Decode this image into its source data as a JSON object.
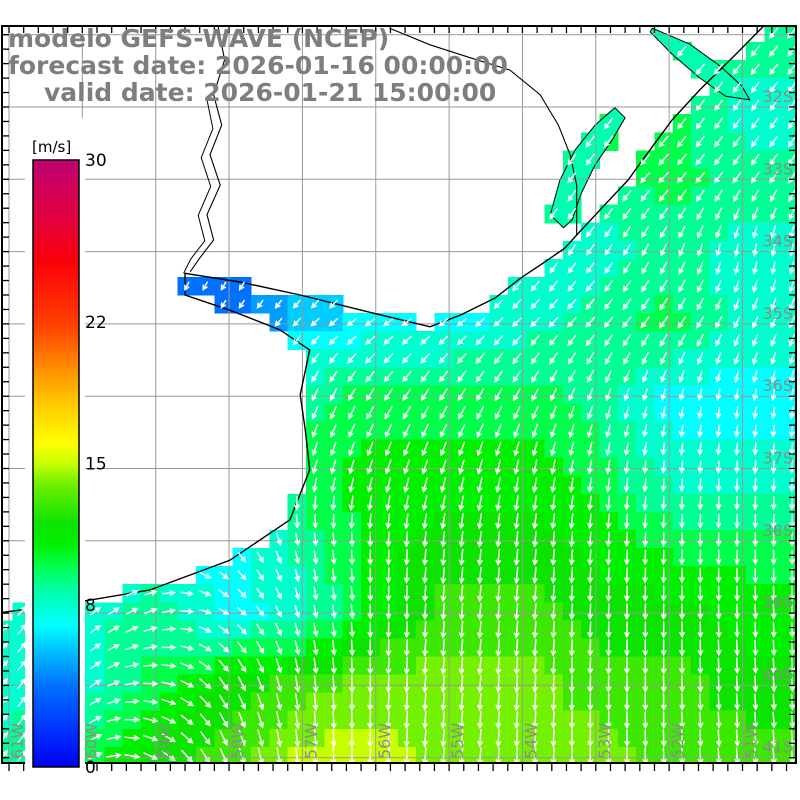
{
  "header": {
    "line1": "modelo GEFS-WAVE (NCEP)",
    "line2": "forecast date: 2026-01-16 00:00:00",
    "line3": "valid date: 2026-01-21 15:00:00"
  },
  "colorbar": {
    "unit_label": "[m/s]",
    "min": 0,
    "max": 30,
    "tick_values": [
      30,
      22,
      15,
      8,
      0
    ],
    "tick_labels": [
      "30",
      "22",
      "15",
      "8",
      "0"
    ],
    "stops": [
      {
        "v": 0,
        "c": "#0000f0"
      },
      {
        "v": 2,
        "c": "#0038ff"
      },
      {
        "v": 4,
        "c": "#0070ff"
      },
      {
        "v": 5.5,
        "c": "#00b4ff"
      },
      {
        "v": 7,
        "c": "#00ffff"
      },
      {
        "v": 8,
        "c": "#00ffce"
      },
      {
        "v": 9,
        "c": "#00ff94"
      },
      {
        "v": 10,
        "c": "#00ff4a"
      },
      {
        "v": 11,
        "c": "#00f000"
      },
      {
        "v": 12,
        "c": "#0ce400"
      },
      {
        "v": 13,
        "c": "#3ce800"
      },
      {
        "v": 14,
        "c": "#74f000"
      },
      {
        "v": 15,
        "c": "#c8ff00"
      },
      {
        "v": 16,
        "c": "#ffff00"
      },
      {
        "v": 18,
        "c": "#ffc800"
      },
      {
        "v": 20,
        "c": "#ff8200"
      },
      {
        "v": 22,
        "c": "#ff3c00"
      },
      {
        "v": 25,
        "c": "#fa0008"
      },
      {
        "v": 27,
        "c": "#e4003c"
      },
      {
        "v": 30,
        "c": "#c00074"
      }
    ]
  },
  "axes": {
    "lon_labels": [
      "61W",
      "60W",
      "59W",
      "58W",
      "57W",
      "56W",
      "55W",
      "54W",
      "53W",
      "52W",
      "51W"
    ],
    "lon_values": [
      61,
      60,
      59,
      58,
      57,
      56,
      55,
      54,
      53,
      52,
      51
    ],
    "lat_labels": [
      "32S",
      "33S",
      "34S",
      "35S",
      "36S",
      "37S",
      "38S",
      "39S",
      "40S",
      "41S"
    ],
    "lat_values": [
      32,
      33,
      34,
      35,
      36,
      37,
      38,
      39,
      40,
      41
    ],
    "gridline_lats": [
      31,
      32,
      33,
      34,
      35,
      36,
      37,
      38,
      39,
      40,
      41
    ],
    "label_color": "#8c8c8c",
    "grid_color": "#999999"
  },
  "chart_data": {
    "type": "heatmap",
    "variable": "wind speed with wind-direction arrows",
    "units": "m/s",
    "model": "GEFS-WAVE (NCEP)",
    "forecast_date": "2026-01-16 00:00:00",
    "valid_date": "2026-01-21 15:00:00",
    "grid_lons_W": [
      61,
      60,
      59,
      58,
      57,
      56,
      55,
      54,
      53,
      52,
      51
    ],
    "grid_lats_S": [
      31,
      32,
      33,
      34,
      35,
      36,
      37,
      38,
      39,
      40,
      41
    ],
    "speed_grid": [
      [
        8,
        8,
        8,
        8,
        8,
        8,
        8,
        9,
        10,
        10,
        9
      ],
      [
        7,
        7,
        7,
        7,
        7,
        7,
        8,
        9,
        10,
        10,
        8
      ],
      [
        7,
        7,
        7,
        7,
        7,
        7,
        8,
        9,
        9,
        10,
        9
      ],
      [
        6,
        6,
        5,
        4,
        5,
        6,
        7,
        8,
        8,
        9,
        8
      ],
      [
        6,
        5,
        4,
        4,
        6,
        7,
        7,
        8,
        9,
        10,
        8
      ],
      [
        7,
        7,
        7,
        8,
        9,
        10,
        10,
        10,
        9,
        7,
        7
      ],
      [
        7,
        7,
        8,
        9,
        10,
        11,
        11,
        11,
        10,
        8,
        8
      ],
      [
        8,
        8,
        8,
        7,
        9,
        11,
        12,
        12,
        11,
        10,
        10
      ],
      [
        8,
        8,
        9,
        7,
        8,
        11,
        13,
        13,
        12,
        12,
        11
      ],
      [
        8,
        8,
        10,
        12,
        13,
        14,
        14,
        14,
        13,
        13,
        12
      ],
      [
        9,
        10,
        12,
        13,
        15,
        15,
        14,
        14,
        14,
        13,
        13
      ]
    ],
    "dir_toward_deg_grid": [
      [
        215,
        215,
        215,
        215,
        215,
        215,
        215,
        215,
        218,
        220,
        220
      ],
      [
        212,
        212,
        212,
        212,
        212,
        212,
        212,
        214,
        216,
        218,
        215
      ],
      [
        208,
        208,
        208,
        208,
        208,
        208,
        210,
        214,
        218,
        222,
        215
      ],
      [
        200,
        200,
        200,
        205,
        210,
        215,
        220,
        215,
        215,
        205,
        190
      ],
      [
        200,
        205,
        210,
        215,
        225,
        235,
        230,
        225,
        220,
        215,
        205
      ],
      [
        190,
        192,
        195,
        200,
        205,
        212,
        212,
        208,
        200,
        195,
        190
      ],
      [
        185,
        185,
        188,
        190,
        195,
        198,
        198,
        192,
        190,
        185,
        183
      ],
      [
        60,
        70,
        90,
        140,
        170,
        182,
        186,
        186,
        184,
        181,
        180
      ],
      [
        40,
        48,
        70,
        125,
        165,
        180,
        185,
        185,
        182,
        180,
        178
      ],
      [
        38,
        50,
        95,
        150,
        172,
        182,
        185,
        184,
        181,
        179,
        177
      ],
      [
        35,
        55,
        120,
        160,
        175,
        183,
        185,
        183,
        180,
        178,
        176
      ]
    ],
    "geo": {
      "coastline": [
        [
          50.72,
          30.89
        ],
        [
          51.1,
          31.28
        ],
        [
          51.58,
          31.76
        ],
        [
          51.96,
          32.18
        ],
        [
          52.26,
          32.59
        ],
        [
          52.56,
          33.01
        ],
        [
          52.94,
          33.42
        ],
        [
          53.26,
          33.77
        ],
        [
          53.42,
          33.95
        ],
        [
          53.69,
          34.14
        ],
        [
          54.03,
          34.37
        ],
        [
          54.37,
          34.64
        ],
        [
          54.85,
          34.88
        ],
        [
          55.26,
          35.04
        ],
        [
          56.08,
          34.84
        ],
        [
          57.03,
          34.6
        ],
        [
          57.85,
          34.42
        ],
        [
          58.6,
          34.3
        ],
        [
          58.6,
          34.6
        ],
        [
          57.99,
          34.81
        ],
        [
          57.31,
          35.08
        ],
        [
          56.9,
          35.36
        ],
        [
          57.03,
          35.98
        ],
        [
          56.96,
          36.47
        ],
        [
          56.9,
          37.02
        ],
        [
          57.17,
          37.71
        ],
        [
          57.99,
          38.27
        ],
        [
          59.08,
          38.68
        ],
        [
          60.3,
          38.89
        ],
        [
          61.1,
          38.99
        ]
      ],
      "border_uy_br": [
        [
          55.81,
          30.91
        ],
        [
          55.26,
          31.14
        ],
        [
          54.71,
          31.32
        ],
        [
          54.17,
          31.49
        ],
        [
          53.76,
          31.83
        ],
        [
          53.51,
          32.25
        ],
        [
          53.35,
          32.66
        ],
        [
          53.26,
          33.08
        ],
        [
          53.26,
          33.63
        ],
        [
          53.26,
          33.77
        ]
      ],
      "river_uruguay": [
        [
          58.15,
          30.88
        ],
        [
          58.06,
          31.35
        ],
        [
          58.21,
          31.83
        ],
        [
          58.1,
          32.25
        ],
        [
          58.26,
          32.66
        ],
        [
          58.12,
          33.08
        ],
        [
          58.3,
          33.49
        ],
        [
          58.21,
          33.84
        ],
        [
          58.4,
          34.09
        ],
        [
          58.53,
          34.28
        ]
      ],
      "river_uruguay_bank2": [
        [
          58.3,
          31.9
        ],
        [
          58.22,
          32.3
        ],
        [
          58.38,
          32.7
        ],
        [
          58.25,
          33.1
        ],
        [
          58.42,
          33.5
        ],
        [
          58.33,
          33.85
        ],
        [
          58.52,
          34.1
        ],
        [
          58.62,
          34.3
        ]
      ],
      "lake_patos": [
        [
          52.23,
          30.91
        ],
        [
          51.72,
          31.13
        ],
        [
          51.31,
          31.43
        ],
        [
          51.01,
          31.71
        ],
        [
          50.9,
          31.9
        ],
        [
          51.23,
          31.85
        ],
        [
          51.58,
          31.6
        ],
        [
          51.96,
          31.27
        ],
        [
          52.26,
          30.96
        ]
      ],
      "lake_mirim": [
        [
          53.62,
          33.49
        ],
        [
          53.49,
          33.01
        ],
        [
          53.28,
          32.59
        ],
        [
          53.01,
          32.25
        ],
        [
          52.74,
          32.01
        ],
        [
          52.6,
          32.15
        ],
        [
          52.78,
          32.46
        ],
        [
          53.01,
          32.8
        ],
        [
          53.21,
          33.22
        ],
        [
          53.32,
          33.56
        ],
        [
          53.44,
          33.67
        ]
      ],
      "lake_fill_speed": 8.5
    },
    "arrow_color": "#ffffff",
    "cell_deg": 0.25
  }
}
